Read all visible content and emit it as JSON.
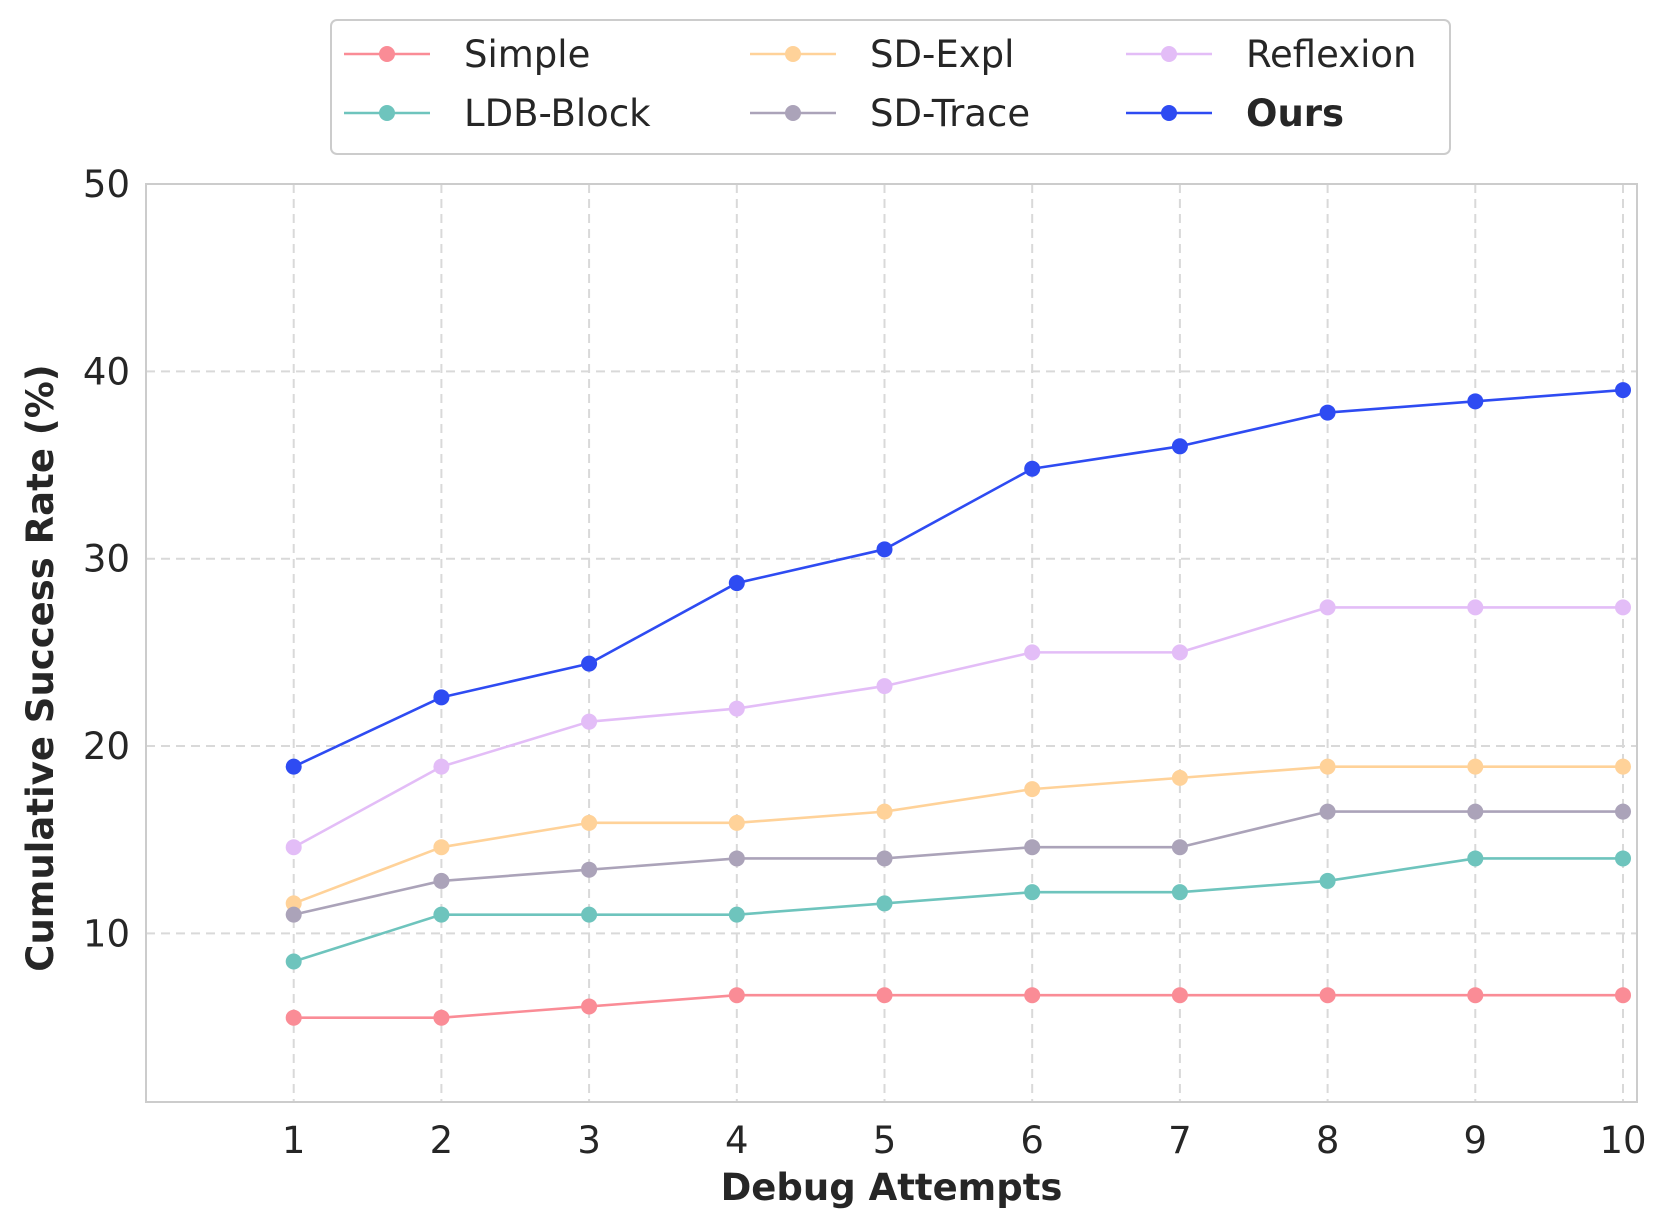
{
  "chart_data": {
    "type": "line",
    "title": "",
    "xlabel": "Debug Attempts",
    "ylabel": "Cumulative Success Rate (%)",
    "x": [
      1,
      2,
      3,
      4,
      5,
      6,
      7,
      8,
      9,
      10
    ],
    "x_tick_labels": [
      "1",
      "2",
      "3",
      "4",
      "5",
      "6",
      "7",
      "8",
      "9",
      "10"
    ],
    "y_tick_labels": [
      "10",
      "20",
      "30",
      "40",
      "50"
    ],
    "y_ticks": [
      10,
      20,
      30,
      40,
      50
    ],
    "xlim": [
      0,
      10
    ],
    "ylim": [
      1,
      50
    ],
    "grid": true,
    "legend_position": "top-center",
    "series": [
      {
        "name": "Simple",
        "color": "#FA8C96",
        "bold": false,
        "values": [
          5.5,
          5.5,
          6.1,
          6.7,
          6.7,
          6.7,
          6.7,
          6.7,
          6.7,
          6.7
        ]
      },
      {
        "name": "LDB-Block",
        "color": "#6EC4BD",
        "bold": false,
        "values": [
          8.5,
          11.0,
          11.0,
          11.0,
          11.6,
          12.2,
          12.2,
          12.8,
          14.0,
          14.0
        ]
      },
      {
        "name": "SD-Expl",
        "color": "#FFD299",
        "bold": false,
        "values": [
          11.6,
          14.6,
          15.9,
          15.9,
          16.5,
          17.7,
          18.3,
          18.9,
          18.9,
          18.9
        ]
      },
      {
        "name": "SD-Trace",
        "color": "#ABA3B9",
        "bold": false,
        "values": [
          11.0,
          12.8,
          13.4,
          14.0,
          14.0,
          14.6,
          14.6,
          16.5,
          16.5,
          16.5
        ]
      },
      {
        "name": "Reflexion",
        "color": "#E3BDF7",
        "bold": false,
        "values": [
          14.6,
          18.9,
          21.3,
          22.0,
          23.2,
          25.0,
          25.0,
          27.4,
          27.4,
          27.4
        ]
      },
      {
        "name": "Ours",
        "color": "#2E4BF2",
        "bold": true,
        "values": [
          18.9,
          22.6,
          24.4,
          28.7,
          30.5,
          34.8,
          36.0,
          37.8,
          38.4,
          39.0
        ]
      }
    ]
  }
}
